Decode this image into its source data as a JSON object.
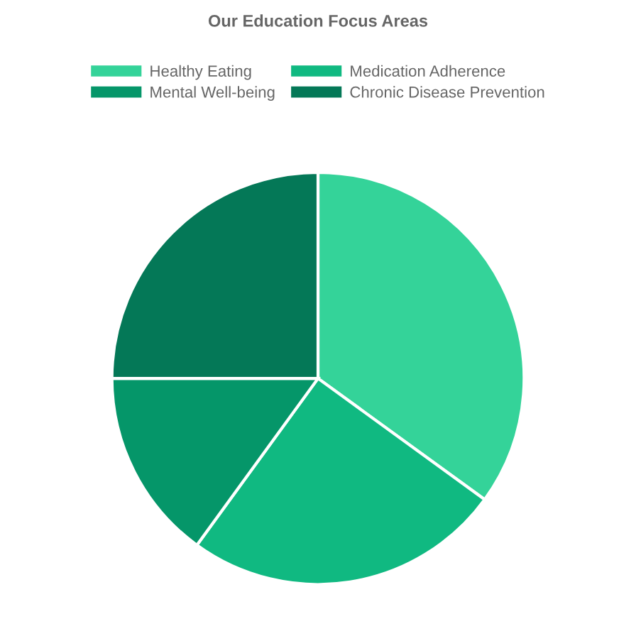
{
  "chart_data": {
    "type": "pie",
    "title": "Our Education Focus Areas",
    "categories": [
      "Healthy Eating",
      "Medication Adherence",
      "Mental Well-being",
      "Chronic Disease Prevention"
    ],
    "values": [
      35,
      25,
      15,
      25
    ],
    "colors": [
      "#34d399",
      "#10b981",
      "#059669",
      "#047857"
    ],
    "legend": "top"
  }
}
